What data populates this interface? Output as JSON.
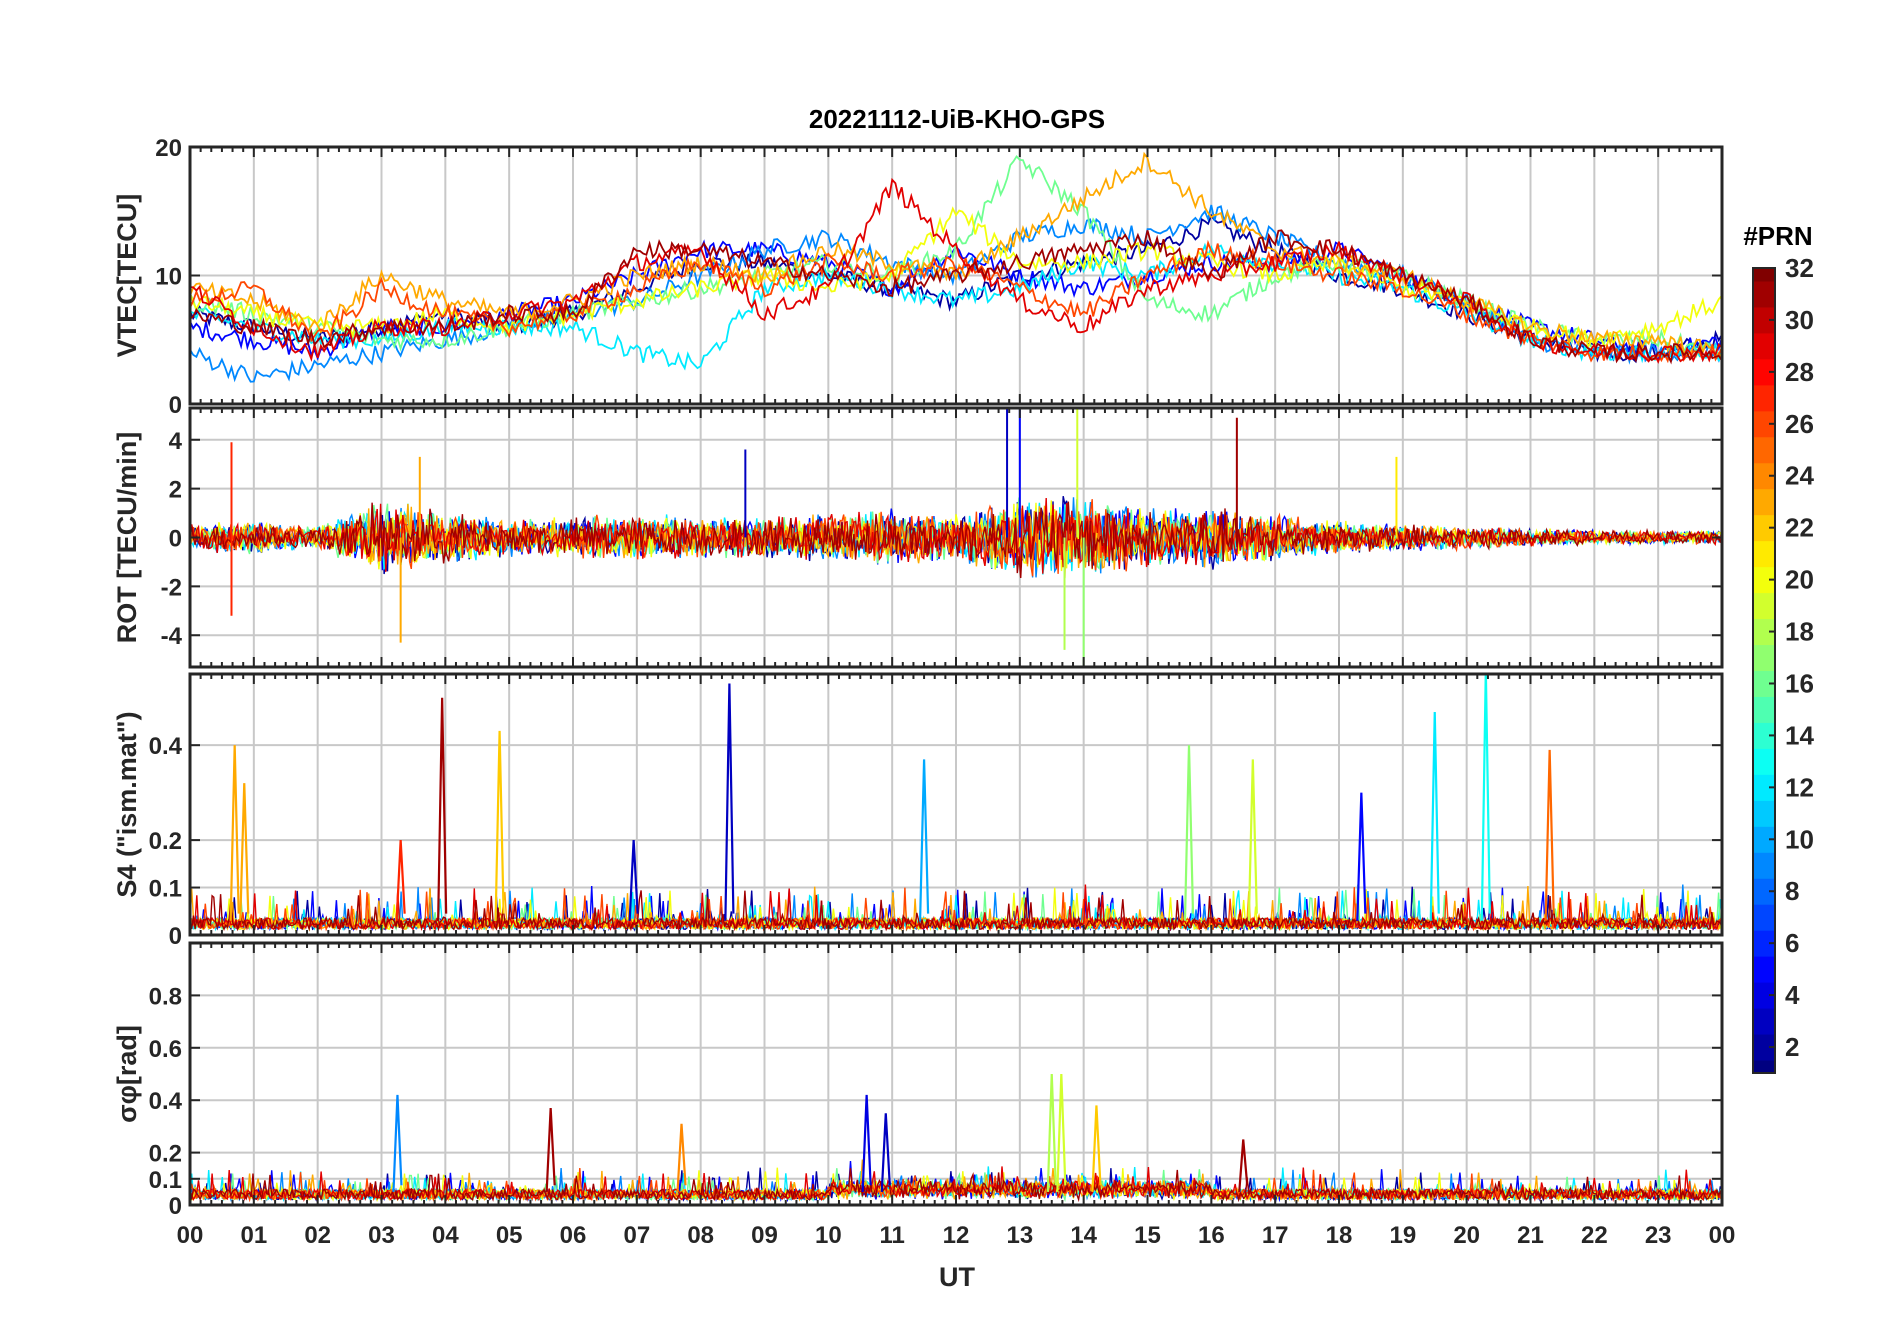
{
  "figure": {
    "title": "20221112-UiB-KHO-GPS",
    "xlabel": "UT",
    "colorbar_label": "#PRN"
  },
  "chart_data": [
    {
      "type": "line",
      "name": "vtec",
      "ylabel": "VTEC[TECU]",
      "ylim": [
        0,
        20
      ],
      "yticks": [
        0,
        10,
        20
      ],
      "xlim": [
        0,
        24
      ],
      "grid": true,
      "series": [
        {
          "prn": 2,
          "x": [
            0,
            1,
            2,
            3,
            4,
            5,
            6,
            7,
            8,
            9,
            10,
            11,
            12,
            13,
            14,
            15,
            16,
            17,
            18,
            19,
            20,
            21,
            22,
            23,
            24
          ],
          "y": [
            7,
            6,
            5,
            6,
            7,
            6,
            7,
            9,
            11,
            11,
            10,
            9,
            8,
            10,
            11,
            12,
            14,
            12,
            10,
            9,
            7,
            5,
            4,
            4,
            5
          ]
        },
        {
          "prn": 5,
          "x": [
            0,
            1,
            2,
            3,
            4,
            5,
            6,
            7,
            8,
            9,
            10,
            11,
            12,
            13,
            14,
            15,
            16,
            17,
            18,
            19,
            20,
            21,
            22,
            23,
            24
          ],
          "y": [
            6,
            5,
            4,
            6,
            6,
            7,
            8,
            10,
            12,
            12,
            11,
            9,
            12,
            10,
            9,
            10,
            11,
            11,
            12,
            10,
            8,
            6,
            5,
            4,
            5
          ]
        },
        {
          "prn": 9,
          "x": [
            0,
            1,
            2,
            3,
            4,
            5,
            6,
            7,
            8,
            9,
            10,
            11,
            12,
            13,
            14,
            15,
            16,
            17,
            18,
            19,
            20,
            21,
            22,
            23,
            24
          ],
          "y": [
            4,
            2,
            3,
            4,
            5,
            6,
            7,
            8,
            10,
            12,
            13,
            11,
            10,
            13,
            14,
            13,
            15,
            13,
            11,
            10,
            8,
            5,
            4,
            4,
            4
          ]
        },
        {
          "prn": 12,
          "x": [
            0,
            1,
            2,
            3,
            4,
            5,
            6,
            7,
            8,
            9,
            10,
            11,
            12,
            13,
            14,
            15,
            16,
            17,
            18,
            19,
            20,
            21,
            22,
            23,
            24
          ],
          "y": [
            7,
            6,
            5,
            5,
            6,
            6,
            6,
            4,
            3,
            9,
            10,
            9,
            8,
            9,
            11,
            10,
            12,
            11,
            10,
            9,
            7,
            5,
            4,
            4,
            4
          ]
        },
        {
          "prn": 16,
          "x": [
            0,
            1,
            2,
            3,
            4,
            5,
            6,
            7,
            8,
            9,
            10,
            11,
            12,
            13,
            14,
            15,
            16,
            17,
            18,
            19,
            20,
            21,
            22,
            23,
            24
          ],
          "y": [
            8,
            7,
            6,
            5,
            5,
            6,
            7,
            8,
            9,
            10,
            11,
            10,
            12,
            19,
            15,
            8,
            7,
            10,
            11,
            10,
            8,
            6,
            5,
            5,
            4
          ]
        },
        {
          "prn": 20,
          "x": [
            0,
            1,
            2,
            3,
            4,
            5,
            6,
            7,
            8,
            9,
            10,
            11,
            12,
            13,
            14,
            15,
            16,
            17,
            18,
            19,
            20,
            21,
            22,
            23,
            24
          ],
          "y": [
            8,
            7,
            6,
            6,
            7,
            6,
            7,
            8,
            9,
            10,
            9,
            10,
            15,
            11,
            11,
            12,
            11,
            10,
            11,
            9,
            8,
            6,
            5,
            6,
            8
          ]
        },
        {
          "prn": 23,
          "x": [
            0,
            1,
            2,
            3,
            4,
            5,
            6,
            7,
            8,
            9,
            10,
            11,
            12,
            13,
            14,
            15,
            16,
            17,
            18,
            19,
            20,
            21,
            22,
            23,
            24
          ],
          "y": [
            9,
            8,
            6,
            10,
            8,
            7,
            8,
            10,
            11,
            10,
            12,
            11,
            10,
            13,
            16,
            19,
            15,
            12,
            11,
            10,
            8,
            6,
            5,
            5,
            4
          ]
        },
        {
          "prn": 26,
          "x": [
            0,
            1,
            2,
            3,
            4,
            5,
            6,
            7,
            8,
            9,
            10,
            11,
            12,
            13,
            14,
            15,
            16,
            17,
            18,
            19,
            20,
            21,
            22,
            23,
            24
          ],
          "y": [
            8,
            9,
            5,
            9,
            7,
            6,
            7,
            9,
            11,
            9,
            11,
            10,
            11,
            9,
            7,
            10,
            12,
            11,
            10,
            9,
            7,
            5,
            4,
            4,
            4
          ]
        },
        {
          "prn": 29,
          "x": [
            0,
            1,
            2,
            3,
            4,
            5,
            6,
            7,
            8,
            9,
            10,
            11,
            12,
            13,
            14,
            15,
            16,
            17,
            18,
            19,
            20,
            21,
            22,
            23,
            24
          ],
          "y": [
            9,
            6,
            4,
            6,
            6,
            7,
            8,
            11,
            12,
            7,
            9,
            17,
            12,
            8,
            6,
            9,
            10,
            11,
            12,
            10,
            8,
            5,
            4,
            4,
            4
          ]
        },
        {
          "prn": 31,
          "x": [
            0,
            1,
            2,
            3,
            4,
            5,
            6,
            7,
            8,
            9,
            10,
            11,
            12,
            13,
            14,
            15,
            16,
            17,
            18,
            19,
            20,
            21,
            22,
            23,
            24
          ],
          "y": [
            7,
            6,
            5,
            6,
            6,
            7,
            7,
            12,
            12,
            11,
            10,
            9,
            10,
            11,
            12,
            13,
            10,
            13,
            12,
            10,
            8,
            5,
            4,
            4,
            4
          ]
        }
      ]
    },
    {
      "type": "line",
      "name": "rot",
      "ylabel": "ROT [TECU/min]",
      "ylim": [
        -5.3,
        5.3
      ],
      "yticks": [
        -4,
        -2,
        0,
        2,
        4
      ],
      "xlim": [
        0,
        24
      ],
      "grid": true,
      "noise_envelope": {
        "x": [
          0,
          1,
          2,
          3,
          4,
          5,
          6,
          7,
          8,
          9,
          10,
          11,
          12,
          13,
          14,
          15,
          16,
          17,
          18,
          19,
          20,
          21,
          22,
          23,
          24
        ],
        "amplitude": [
          0.6,
          0.7,
          0.5,
          1.6,
          1.2,
          0.8,
          0.9,
          1.0,
          0.9,
          0.9,
          1.1,
          1.2,
          1.0,
          1.8,
          1.8,
          1.3,
          1.4,
          1.0,
          0.7,
          0.6,
          0.5,
          0.4,
          0.3,
          0.3,
          0.3
        ]
      },
      "spikes": [
        {
          "x": 0.65,
          "y": 3.9,
          "prn": 27
        },
        {
          "x": 0.65,
          "y": -3.2,
          "prn": 27
        },
        {
          "x": 3.3,
          "y": -4.3,
          "prn": 23
        },
        {
          "x": 3.6,
          "y": 3.3,
          "prn": 23
        },
        {
          "x": 8.7,
          "y": 3.6,
          "prn": 3
        },
        {
          "x": 12.8,
          "y": 5.3,
          "prn": 3
        },
        {
          "x": 13.0,
          "y": 5.3,
          "prn": 5
        },
        {
          "x": 13.7,
          "y": -4.6,
          "prn": 18
        },
        {
          "x": 13.9,
          "y": 5.3,
          "prn": 19
        },
        {
          "x": 14.0,
          "y": -5.3,
          "prn": 17
        },
        {
          "x": 16.4,
          "y": 4.9,
          "prn": 31
        },
        {
          "x": 18.9,
          "y": 3.3,
          "prn": 21
        }
      ]
    },
    {
      "type": "line",
      "name": "s4",
      "ylabel": "S4 (\"ism.mat\")",
      "ylim": [
        0,
        0.55
      ],
      "yticks": [
        0,
        0.1,
        0.2,
        0.4
      ],
      "xlim": [
        0,
        24
      ],
      "grid": true,
      "baseline": 0.03,
      "spikes": [
        {
          "x": 0.7,
          "y": 0.4,
          "prn": 23
        },
        {
          "x": 0.85,
          "y": 0.32,
          "prn": 23
        },
        {
          "x": 3.3,
          "y": 0.2,
          "prn": 27
        },
        {
          "x": 3.95,
          "y": 0.5,
          "prn": 31
        },
        {
          "x": 4.85,
          "y": 0.43,
          "prn": 22
        },
        {
          "x": 6.95,
          "y": 0.2,
          "prn": 3
        },
        {
          "x": 8.45,
          "y": 0.53,
          "prn": 3
        },
        {
          "x": 11.5,
          "y": 0.37,
          "prn": 10
        },
        {
          "x": 15.65,
          "y": 0.4,
          "prn": 17
        },
        {
          "x": 16.65,
          "y": 0.37,
          "prn": 19
        },
        {
          "x": 18.35,
          "y": 0.3,
          "prn": 5
        },
        {
          "x": 19.5,
          "y": 0.47,
          "prn": 12
        },
        {
          "x": 20.3,
          "y": 0.56,
          "prn": 13
        },
        {
          "x": 21.3,
          "y": 0.39,
          "prn": 25
        }
      ]
    },
    {
      "type": "line",
      "name": "sigma_phi",
      "ylabel": "σφ[rad]",
      "ylim": [
        0,
        1.0
      ],
      "yticks": [
        0,
        0.1,
        0.2,
        0.4,
        0.6,
        0.8
      ],
      "xlim": [
        0,
        24
      ],
      "grid": true,
      "baseline": 0.05,
      "spikes": [
        {
          "x": 3.25,
          "y": 0.42,
          "prn": 9
        },
        {
          "x": 5.65,
          "y": 0.37,
          "prn": 31
        },
        {
          "x": 7.7,
          "y": 0.31,
          "prn": 24
        },
        {
          "x": 10.6,
          "y": 0.42,
          "prn": 4
        },
        {
          "x": 10.9,
          "y": 0.35,
          "prn": 3
        },
        {
          "x": 13.5,
          "y": 0.5,
          "prn": 18
        },
        {
          "x": 13.65,
          "y": 0.5,
          "prn": 19
        },
        {
          "x": 14.2,
          "y": 0.38,
          "prn": 22
        },
        {
          "x": 16.5,
          "y": 0.25,
          "prn": 31
        }
      ]
    }
  ],
  "xaxis": {
    "ticklabels": [
      "00",
      "01",
      "02",
      "03",
      "04",
      "05",
      "06",
      "07",
      "08",
      "09",
      "10",
      "11",
      "12",
      "13",
      "14",
      "15",
      "16",
      "17",
      "18",
      "19",
      "20",
      "21",
      "22",
      "23",
      "00"
    ]
  },
  "colorbar": {
    "min": 1,
    "max": 32,
    "ticks": [
      2,
      4,
      6,
      8,
      10,
      12,
      14,
      16,
      18,
      20,
      22,
      24,
      26,
      28,
      30,
      32
    ],
    "ticklabels": [
      "2",
      "4",
      "6",
      "8",
      "10",
      "12",
      "14",
      "16",
      "18",
      "20",
      "22",
      "24",
      "26",
      "28",
      "30",
      "32"
    ],
    "colormap": "jet"
  }
}
